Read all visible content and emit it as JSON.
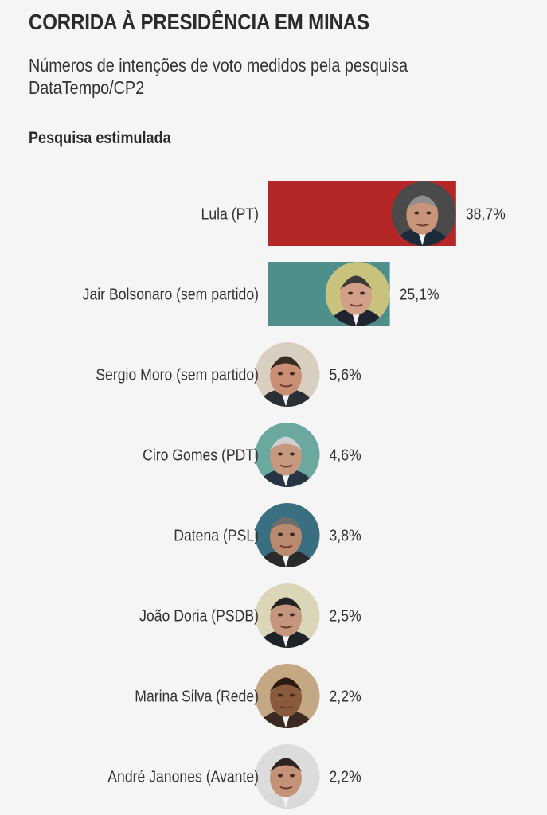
{
  "header": {
    "title": "CORRIDA À PRESIDÊNCIA EM MINAS",
    "subtitle": "Números de intenções de voto medidos pela pesquisa DataTempo/CP2",
    "section_label": "Pesquisa estimulada"
  },
  "colors": {
    "lula_bar": "#b52727",
    "bolsonaro_bar": "#4e8f8c",
    "background": "#f5f5f5"
  },
  "chart_data": {
    "type": "bar",
    "orientation": "horizontal",
    "title": "CORRIDA À PRESIDÊNCIA EM MINAS",
    "subtitle": "Números de intenções de voto medidos pela pesquisa DataTempo/CP2",
    "categories": [
      "Lula (PT)",
      "Jair Bolsonaro (sem partido)",
      "Sergio Moro (sem partido)",
      "Ciro Gomes (PDT)",
      "Datena (PSL)",
      "João Doria (PSDB)",
      "Marina Silva (Rede)",
      "André Janones (Avante)"
    ],
    "values": [
      38.7,
      25.1,
      5.6,
      4.6,
      3.8,
      2.5,
      2.2,
      2.2
    ],
    "value_labels": [
      "38,7%",
      "25,1%",
      "5,6%",
      "4,6%",
      "3,8%",
      "2,5%",
      "2,2%",
      "2,2%"
    ],
    "unit": "%",
    "bar_colors": [
      "#b52727",
      "#4e8f8c",
      null,
      null,
      null,
      null,
      null,
      null
    ],
    "photo_icons": [
      "lula-photo-icon",
      "bolsonaro-photo-icon",
      "moro-photo-icon",
      "ciro-photo-icon",
      "datena-photo-icon",
      "doria-photo-icon",
      "marina-photo-icon",
      "janones-photo-icon"
    ],
    "grid": false,
    "legend": "none"
  }
}
